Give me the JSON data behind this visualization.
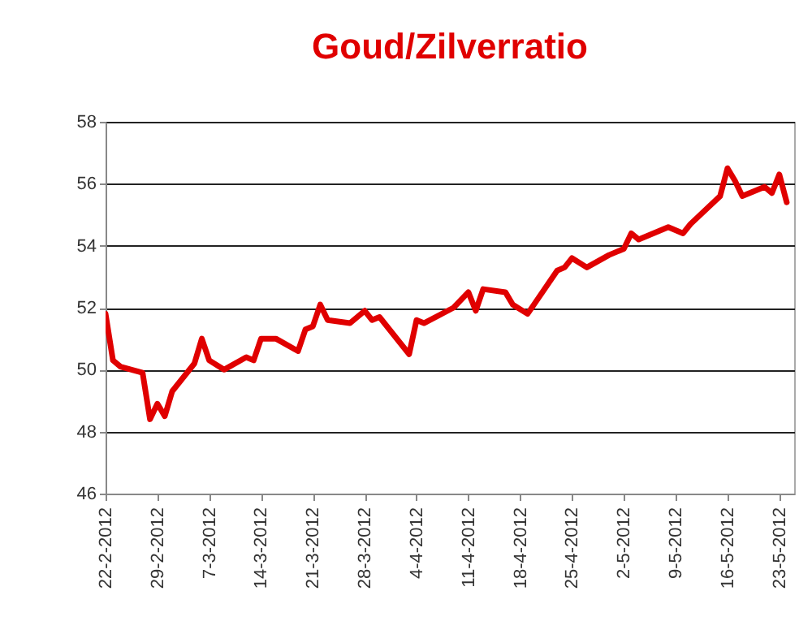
{
  "chart_data": {
    "type": "line",
    "title": "Goud/Zilverratio",
    "x": [
      "2012-02-22",
      "2012-02-23",
      "2012-02-24",
      "2012-02-27",
      "2012-02-28",
      "2012-02-29",
      "2012-03-01",
      "2012-03-02",
      "2012-03-05",
      "2012-03-06",
      "2012-03-07",
      "2012-03-09",
      "2012-03-12",
      "2012-03-13",
      "2012-03-14",
      "2012-03-16",
      "2012-03-19",
      "2012-03-20",
      "2012-03-21",
      "2012-03-22",
      "2012-03-23",
      "2012-03-26",
      "2012-03-28",
      "2012-03-29",
      "2012-03-30",
      "2012-04-03",
      "2012-04-04",
      "2012-04-05",
      "2012-04-09",
      "2012-04-11",
      "2012-04-12",
      "2012-04-13",
      "2012-04-16",
      "2012-04-17",
      "2012-04-19",
      "2012-04-23",
      "2012-04-24",
      "2012-04-25",
      "2012-04-27",
      "2012-04-30",
      "2012-05-02",
      "2012-05-03",
      "2012-05-04",
      "2012-05-08",
      "2012-05-10",
      "2012-05-11",
      "2012-05-15",
      "2012-05-16",
      "2012-05-17",
      "2012-05-18",
      "2012-05-21",
      "2012-05-22",
      "2012-05-23",
      "2012-05-24"
    ],
    "series": [
      {
        "color": "#e00000",
        "values": [
          51.8,
          50.3,
          50.1,
          49.9,
          48.4,
          48.9,
          48.5,
          49.3,
          50.2,
          51.0,
          50.3,
          50.0,
          50.4,
          50.3,
          51.0,
          51.0,
          50.6,
          51.3,
          51.4,
          52.1,
          51.6,
          51.5,
          51.9,
          51.6,
          51.7,
          50.5,
          51.6,
          51.5,
          52.0,
          52.5,
          51.9,
          52.6,
          52.5,
          52.1,
          51.8,
          53.2,
          53.3,
          53.6,
          53.3,
          53.7,
          53.9,
          54.4,
          54.2,
          54.6,
          54.4,
          54.7,
          55.6,
          56.5,
          56.1,
          55.6,
          55.9,
          55.7,
          56.3,
          55.4
        ]
      }
    ],
    "xlim": [
      "2012-02-22",
      "2012-05-25"
    ],
    "xticks": [
      {
        "value": "2012-02-22",
        "label": "22-2-2012"
      },
      {
        "value": "2012-02-29",
        "label": "29-2-2012"
      },
      {
        "value": "2012-03-07",
        "label": "7-3-2012"
      },
      {
        "value": "2012-03-14",
        "label": "14-3-2012"
      },
      {
        "value": "2012-03-21",
        "label": "21-3-2012"
      },
      {
        "value": "2012-03-28",
        "label": "28-3-2012"
      },
      {
        "value": "2012-04-04",
        "label": "4-4-2012"
      },
      {
        "value": "2012-04-11",
        "label": "11-4-2012"
      },
      {
        "value": "2012-04-18",
        "label": "18-4-2012"
      },
      {
        "value": "2012-04-25",
        "label": "25-4-2012"
      },
      {
        "value": "2012-05-02",
        "label": "2-5-2012"
      },
      {
        "value": "2012-05-09",
        "label": "9-5-2012"
      },
      {
        "value": "2012-05-16",
        "label": "16-5-2012"
      },
      {
        "value": "2012-05-23",
        "label": "23-5-2012"
      }
    ],
    "ylim": [
      46,
      58
    ],
    "yticks": [
      46,
      48,
      50,
      52,
      54,
      56,
      58
    ],
    "grid": "y",
    "legend": false,
    "marker": "none",
    "line_style": "solid"
  }
}
